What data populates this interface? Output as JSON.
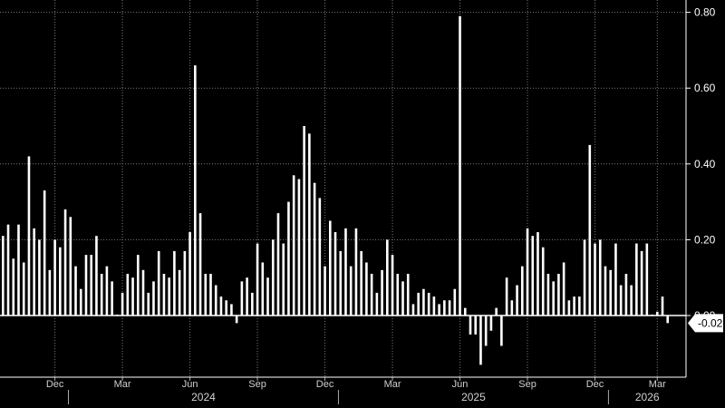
{
  "chart_data": {
    "type": "bar",
    "title": "",
    "xlabel": "",
    "ylabel": "",
    "ylim": [
      -0.13,
      0.82
    ],
    "y_ticks": [
      {
        "value": 0.8,
        "label": "0.80"
      },
      {
        "value": 0.6,
        "label": "0.60"
      },
      {
        "value": 0.4,
        "label": "0.40"
      },
      {
        "value": 0.2,
        "label": "0.20"
      },
      {
        "value": 0.0,
        "label": "0.00"
      }
    ],
    "grid": true,
    "y_axis_side": "right",
    "bar_color": "#ffffff",
    "grid_color": "#7a7a7a",
    "background": "#000000",
    "x_month_ticks": [
      {
        "index": 10,
        "label": "Dec"
      },
      {
        "index": 23,
        "label": "Mar"
      },
      {
        "index": 36,
        "label": "Jun"
      },
      {
        "index": 49,
        "label": "Sep"
      },
      {
        "index": 62,
        "label": "Dec"
      },
      {
        "index": 75,
        "label": "Mar"
      },
      {
        "index": 88,
        "label": "Jun"
      },
      {
        "index": 101,
        "label": "Sep"
      },
      {
        "index": 114,
        "label": "Dec"
      },
      {
        "index": 126,
        "label": "Mar"
      }
    ],
    "x_year_labels": [
      {
        "start_index": 13,
        "end_index": 65,
        "label": "2024"
      },
      {
        "start_index": 65,
        "end_index": 117,
        "label": "2025"
      },
      {
        "start_index": 117,
        "end_index": 133,
        "label": "2026"
      }
    ],
    "last_value_label": "-0.02",
    "values": [
      0.21,
      0.24,
      0.15,
      0.24,
      0.14,
      0.42,
      0.23,
      0.2,
      0.33,
      0.12,
      0.2,
      0.18,
      0.28,
      0.26,
      0.13,
      0.07,
      0.16,
      0.16,
      0.21,
      0.11,
      0.13,
      0.09,
      0.0,
      0.06,
      0.11,
      0.1,
      0.16,
      0.12,
      0.06,
      0.09,
      0.17,
      0.11,
      0.1,
      0.17,
      0.12,
      0.17,
      0.22,
      0.66,
      0.27,
      0.11,
      0.11,
      0.08,
      0.05,
      0.04,
      0.03,
      -0.02,
      0.09,
      0.1,
      0.06,
      0.19,
      0.14,
      0.1,
      0.2,
      0.27,
      0.19,
      0.3,
      0.37,
      0.36,
      0.5,
      0.48,
      0.35,
      0.31,
      0.13,
      0.25,
      0.22,
      0.17,
      0.23,
      0.13,
      0.23,
      0.17,
      0.14,
      0.11,
      0.06,
      0.12,
      0.2,
      0.16,
      0.11,
      0.09,
      0.11,
      0.03,
      0.06,
      0.07,
      0.06,
      0.05,
      0.03,
      0.04,
      0.04,
      0.07,
      0.79,
      0.02,
      -0.05,
      -0.05,
      -0.13,
      -0.08,
      -0.04,
      0.02,
      -0.08,
      0.1,
      0.04,
      0.08,
      0.13,
      0.23,
      0.21,
      0.22,
      0.18,
      0.11,
      0.09,
      0.11,
      0.14,
      0.04,
      0.05,
      0.05,
      0.2,
      0.45,
      0.19,
      0.2,
      0.13,
      0.12,
      0.19,
      0.08,
      0.11,
      0.08,
      0.19,
      0.17,
      0.19,
      0.0,
      0.01,
      0.05,
      -0.02
    ]
  }
}
